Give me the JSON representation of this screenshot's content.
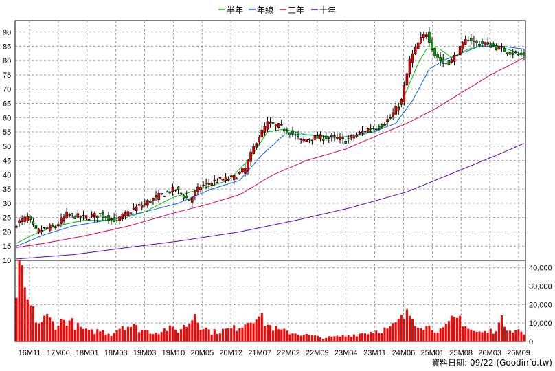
{
  "legend": [
    {
      "label": "半年",
      "color": "#00c000"
    },
    {
      "label": "年線",
      "color": "#0060ff"
    },
    {
      "label": "三年",
      "color": "#e0004a"
    },
    {
      "label": "十年",
      "color": "#6000c0"
    }
  ],
  "footer": {
    "text": "資料日期: 09/22  (Goodinfo.tw)"
  },
  "chart_data": {
    "type": "candlestick",
    "price_axis": {
      "ylim": [
        10,
        94
      ],
      "ticks": [
        10,
        15,
        20,
        25,
        30,
        35,
        40,
        45,
        50,
        55,
        60,
        65,
        70,
        75,
        80,
        85,
        90
      ]
    },
    "volume_axis": {
      "ylim": [
        0,
        44000
      ],
      "ticks": [
        0,
        10000,
        20000,
        30000,
        40000
      ],
      "tick_labels": [
        "0",
        "10,000",
        "20,000",
        "30,000",
        "40,000"
      ]
    },
    "x_tick_labels": [
      "16M11",
      "17M06",
      "18M01",
      "18M08",
      "19M03",
      "19M10",
      "20M05",
      "20M12",
      "21M07",
      "22M02",
      "22M09",
      "23M04",
      "23M11",
      "24M06",
      "25M01",
      "25M08",
      "26M03",
      "26M09"
    ],
    "bar_colors": {
      "up": "#e00000",
      "down": "#00a000",
      "volume": "#ff0000"
    },
    "price_anchors": [
      [
        0,
        23
      ],
      [
        4,
        25
      ],
      [
        7,
        20
      ],
      [
        10,
        21
      ],
      [
        14,
        22
      ],
      [
        18,
        26
      ],
      [
        24,
        25
      ],
      [
        30,
        26
      ],
      [
        36,
        24
      ],
      [
        42,
        28
      ],
      [
        48,
        31
      ],
      [
        52,
        33
      ],
      [
        57,
        35
      ],
      [
        62,
        31
      ],
      [
        66,
        36
      ],
      [
        72,
        38
      ],
      [
        78,
        39
      ],
      [
        82,
        42
      ],
      [
        86,
        52
      ],
      [
        90,
        58
      ],
      [
        94,
        57
      ],
      [
        98,
        55
      ],
      [
        102,
        52
      ],
      [
        106,
        53
      ],
      [
        110,
        53
      ],
      [
        114,
        53
      ],
      [
        118,
        52
      ],
      [
        122,
        54
      ],
      [
        126,
        56
      ],
      [
        130,
        57
      ],
      [
        134,
        60
      ],
      [
        138,
        66
      ],
      [
        141,
        80
      ],
      [
        144,
        86
      ],
      [
        147,
        90
      ],
      [
        150,
        82
      ],
      [
        153,
        79
      ],
      [
        156,
        80
      ],
      [
        159,
        84
      ],
      [
        162,
        88
      ],
      [
        165,
        86
      ],
      [
        168,
        86
      ],
      [
        171,
        85
      ],
      [
        174,
        84
      ],
      [
        177,
        83
      ],
      [
        180,
        82
      ],
      [
        182,
        82
      ]
    ],
    "volume_anchors": [
      [
        0,
        28000
      ],
      [
        1,
        44000
      ],
      [
        2,
        33000
      ],
      [
        3,
        26000
      ],
      [
        5,
        18000
      ],
      [
        8,
        10000
      ],
      [
        11,
        13000
      ],
      [
        14,
        9000
      ],
      [
        18,
        12000
      ],
      [
        22,
        8000
      ],
      [
        26,
        5000
      ],
      [
        30,
        6000
      ],
      [
        34,
        4000
      ],
      [
        38,
        9000
      ],
      [
        42,
        8000
      ],
      [
        46,
        6000
      ],
      [
        50,
        5000
      ],
      [
        54,
        7000
      ],
      [
        58,
        6000
      ],
      [
        62,
        10000
      ],
      [
        64,
        16000
      ],
      [
        66,
        9000
      ],
      [
        70,
        5000
      ],
      [
        74,
        6000
      ],
      [
        78,
        7000
      ],
      [
        82,
        10000
      ],
      [
        86,
        15000
      ],
      [
        88,
        12000
      ],
      [
        90,
        9000
      ],
      [
        94,
        6000
      ],
      [
        98,
        5000
      ],
      [
        102,
        4000
      ],
      [
        106,
        3000
      ],
      [
        110,
        2000
      ],
      [
        114,
        2500
      ],
      [
        118,
        3000
      ],
      [
        122,
        4000
      ],
      [
        126,
        5000
      ],
      [
        130,
        6000
      ],
      [
        134,
        7000
      ],
      [
        138,
        12000
      ],
      [
        141,
        15000
      ],
      [
        144,
        10000
      ],
      [
        147,
        8000
      ],
      [
        150,
        7000
      ],
      [
        153,
        6000
      ],
      [
        156,
        11000
      ],
      [
        159,
        13000
      ],
      [
        162,
        7000
      ],
      [
        165,
        5000
      ],
      [
        168,
        5000
      ],
      [
        171,
        6000
      ],
      [
        174,
        11000
      ],
      [
        177,
        7000
      ],
      [
        180,
        6000
      ],
      [
        182,
        4000
      ]
    ],
    "ma_half_anchors": [
      [
        0,
        16
      ],
      [
        6,
        19
      ],
      [
        14,
        22
      ],
      [
        24,
        24
      ],
      [
        36,
        24
      ],
      [
        46,
        27
      ],
      [
        56,
        32
      ],
      [
        66,
        35
      ],
      [
        76,
        38
      ],
      [
        84,
        46
      ],
      [
        90,
        55
      ],
      [
        96,
        56
      ],
      [
        104,
        54
      ],
      [
        114,
        53
      ],
      [
        124,
        54
      ],
      [
        132,
        57
      ],
      [
        137,
        63
      ],
      [
        141,
        72
      ],
      [
        144,
        79
      ],
      [
        147,
        84
      ],
      [
        152,
        84
      ],
      [
        156,
        81
      ],
      [
        162,
        84
      ],
      [
        170,
        86
      ],
      [
        176,
        84
      ],
      [
        182,
        82
      ]
    ],
    "ma_year_anchors": [
      [
        0,
        15
      ],
      [
        10,
        19
      ],
      [
        20,
        22
      ],
      [
        32,
        24
      ],
      [
        46,
        27
      ],
      [
        58,
        30
      ],
      [
        70,
        35
      ],
      [
        80,
        38
      ],
      [
        88,
        47
      ],
      [
        96,
        54
      ],
      [
        106,
        54
      ],
      [
        116,
        53
      ],
      [
        128,
        55
      ],
      [
        136,
        58
      ],
      [
        142,
        66
      ],
      [
        148,
        77
      ],
      [
        153,
        80
      ],
      [
        158,
        82
      ],
      [
        166,
        85
      ],
      [
        174,
        85
      ],
      [
        182,
        84
      ]
    ],
    "ma_3yr_anchors": [
      [
        0,
        14.5
      ],
      [
        10,
        16
      ],
      [
        24,
        18.5
      ],
      [
        40,
        22
      ],
      [
        56,
        26.5
      ],
      [
        68,
        29.5
      ],
      [
        80,
        33
      ],
      [
        92,
        40
      ],
      [
        104,
        45
      ],
      [
        118,
        49
      ],
      [
        130,
        54
      ],
      [
        140,
        58
      ],
      [
        150,
        63
      ],
      [
        160,
        69
      ],
      [
        170,
        75
      ],
      [
        182,
        81
      ]
    ],
    "ma_10yr_anchors": [
      [
        0,
        10.5
      ],
      [
        20,
        12
      ],
      [
        40,
        14.5
      ],
      [
        60,
        17
      ],
      [
        80,
        20
      ],
      [
        100,
        24
      ],
      [
        120,
        28.5
      ],
      [
        140,
        34
      ],
      [
        160,
        42
      ],
      [
        175,
        48
      ],
      [
        182,
        51
      ]
    ]
  }
}
